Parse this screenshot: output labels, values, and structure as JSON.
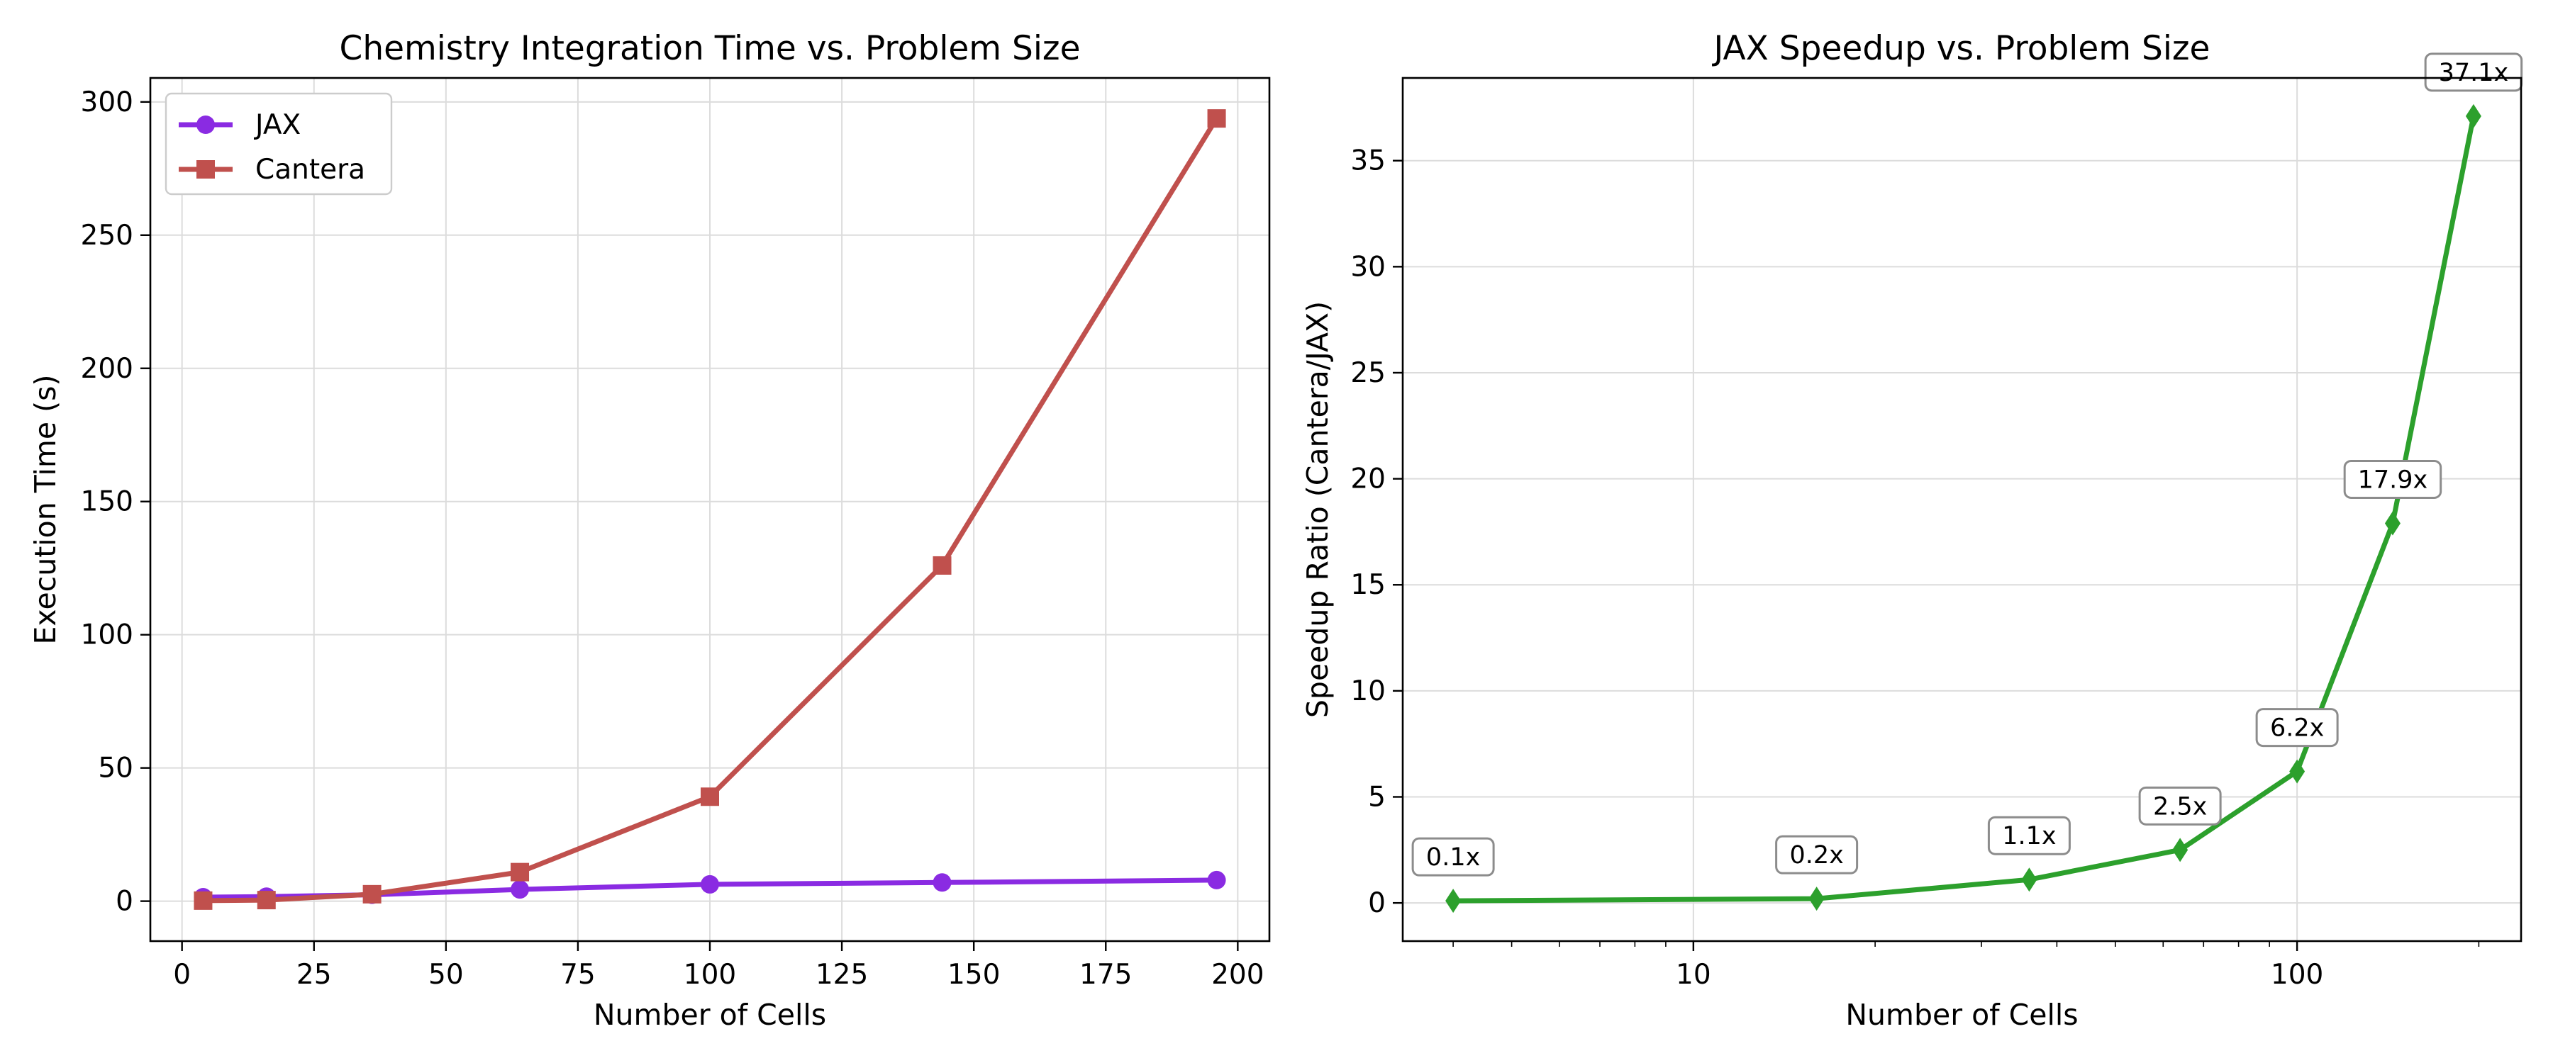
{
  "chart_data": [
    {
      "type": "line",
      "title": "Chemistry Integration Time vs. Problem Size",
      "xlabel": "Number of Cells",
      "ylabel": "Execution Time (s)",
      "xlim": [
        -6,
        206
      ],
      "ylim": [
        -15,
        309
      ],
      "xticks": [
        0,
        25,
        50,
        75,
        100,
        125,
        150,
        175,
        200
      ],
      "yticks": [
        0,
        50,
        100,
        150,
        200,
        250,
        300
      ],
      "grid": true,
      "legend_position": "top-left",
      "x": [
        4,
        16,
        36,
        64,
        100,
        144,
        196
      ],
      "series": [
        {
          "name": "JAX",
          "color": "#8a2be2",
          "marker": "circle",
          "values": [
            1.5,
            1.7,
            2.4,
            4.4,
            6.3,
            7.0,
            7.9
          ]
        },
        {
          "name": "Cantera",
          "color": "#c0504d",
          "marker": "square",
          "values": [
            0.2,
            0.4,
            2.6,
            10.9,
            39.2,
            126.0,
            293.8
          ]
        }
      ]
    },
    {
      "type": "line",
      "title": "JAX Speedup vs. Problem Size",
      "xlabel": "Number of Cells",
      "ylabel": "Speedup Ratio (Cantera/JAX)",
      "xscale": "log",
      "xlim": [
        3.3,
        235
      ],
      "ylim": [
        -1.8,
        38.9
      ],
      "xticks": [
        10,
        100
      ],
      "xtick_labels": [
        "10",
        "100"
      ],
      "yticks": [
        0,
        5,
        10,
        15,
        20,
        25,
        30,
        35
      ],
      "grid": true,
      "x": [
        4,
        16,
        36,
        64,
        100,
        144,
        196
      ],
      "series": [
        {
          "color": "#2ca02c",
          "marker": "diamond",
          "values": [
            0.1,
            0.2,
            1.1,
            2.5,
            6.2,
            17.9,
            37.1
          ],
          "labels": [
            "0.1x",
            "0.2x",
            "1.1x",
            "2.5x",
            "6.2x",
            "17.9x",
            "37.1x"
          ]
        }
      ]
    }
  ]
}
